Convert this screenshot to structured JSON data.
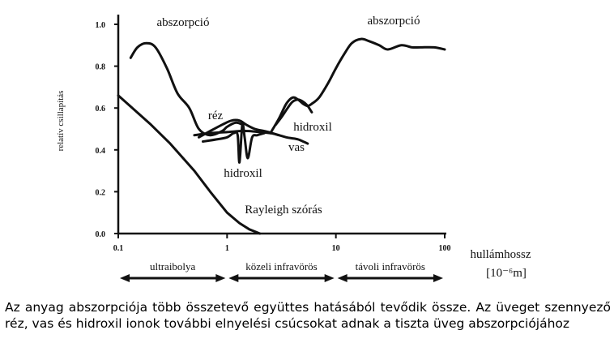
{
  "chart_data": {
    "type": "line",
    "ylabel": "relatív csillapítás",
    "xlabel": "hullámhossz",
    "xunit": "[10⁻⁶m]",
    "x_scale": "log",
    "xlim": [
      0.1,
      100
    ],
    "ylim": [
      0.0,
      1.0
    ],
    "x_ticks": [
      "0.1",
      "1",
      "10",
      "100"
    ],
    "y_ticks": [
      "0.0",
      "0.2",
      "0.4",
      "0.6",
      "0.8",
      "1.0"
    ],
    "series": [
      {
        "name": "abszorpció",
        "x": [
          0.13,
          0.15,
          0.18,
          0.22,
          0.28,
          0.35,
          0.45,
          0.55,
          0.7,
          0.9,
          1.0,
          1.2,
          1.4
        ],
        "y": [
          0.84,
          0.89,
          0.91,
          0.89,
          0.79,
          0.67,
          0.6,
          0.5,
          0.47,
          0.49,
          0.51,
          0.53,
          0.52
        ]
      },
      {
        "name": "abszorpció",
        "x": [
          2.5,
          3.0,
          3.5,
          4.0,
          4.5,
          5.0,
          5.5,
          6.0,
          7.0,
          8.5,
          10,
          12,
          14,
          17,
          20,
          25,
          30,
          40,
          50,
          60,
          80,
          100
        ],
        "y": [
          0.48,
          0.55,
          0.62,
          0.65,
          0.64,
          0.62,
          0.61,
          0.62,
          0.65,
          0.72,
          0.79,
          0.86,
          0.91,
          0.93,
          0.92,
          0.9,
          0.88,
          0.9,
          0.89,
          0.89,
          0.89,
          0.88
        ]
      },
      {
        "name": "réz",
        "x": [
          0.55,
          0.7,
          0.9,
          1.1,
          1.3,
          1.5,
          1.8,
          2.2,
          2.6,
          3.0
        ],
        "y": [
          0.46,
          0.49,
          0.52,
          0.54,
          0.54,
          0.52,
          0.5,
          0.49,
          0.48,
          0.47
        ]
      },
      {
        "name": "vas",
        "x": [
          0.5,
          0.7,
          1.0,
          1.3,
          1.6,
          2.0,
          2.5,
          3.0,
          3.5,
          4.0,
          4.5,
          5.0,
          5.5
        ],
        "y": [
          0.47,
          0.48,
          0.485,
          0.49,
          0.49,
          0.485,
          0.48,
          0.47,
          0.46,
          0.455,
          0.45,
          0.44,
          0.43
        ]
      },
      {
        "name": "hidroxil",
        "x": [
          0.6,
          0.8,
          1.0,
          1.15,
          1.25,
          1.3,
          1.38,
          1.45,
          1.55,
          1.7,
          1.9,
          2.2
        ],
        "y": [
          0.44,
          0.45,
          0.46,
          0.48,
          0.47,
          0.34,
          0.52,
          0.46,
          0.36,
          0.46,
          0.47,
          0.48
        ]
      },
      {
        "name": "hidroxil",
        "x": [
          2.8,
          3.2,
          3.6,
          4.0,
          4.5,
          5.0,
          5.5,
          6.0
        ],
        "y": [
          0.52,
          0.56,
          0.6,
          0.63,
          0.64,
          0.63,
          0.61,
          0.58
        ]
      },
      {
        "name": "Rayleigh szórás",
        "x": [
          0.1,
          0.2,
          0.3,
          0.5,
          0.7,
          1.0,
          1.3,
          1.6,
          2.0
        ],
        "y": [
          0.66,
          0.52,
          0.43,
          0.3,
          0.2,
          0.1,
          0.05,
          0.02,
          0.0
        ]
      }
    ],
    "curve_labels": [
      {
        "text": "abszorpció",
        "x": 0.24,
        "y": 0.97
      },
      {
        "text": "abszorpció",
        "x": 19,
        "y": 0.98
      },
      {
        "text": "réz",
        "x": 0.82,
        "y": 0.56
      },
      {
        "text": "hidroxil",
        "x": 0.0,
        "y": 0.0
      },
      {
        "text": "vas",
        "x": 0.0,
        "y": 0.0
      },
      {
        "text": "hidroxil",
        "x": 0.0,
        "y": 0.0
      },
      {
        "text": "Rayleigh szórás",
        "x": 0.0,
        "y": 0.0
      }
    ],
    "regions": [
      {
        "label": "ultraibolya",
        "from": 0.1,
        "to": 1
      },
      {
        "label": "közeli infravörös",
        "from": 1,
        "to": 10
      },
      {
        "label": "távoli infravörös",
        "from": 10,
        "to": 100
      }
    ]
  },
  "caption": "Az anyag abszorpciója több összetevő együttes hatásából tevődik össze. Az üveget szennyező réz, vas és hidroxil ionok további elnyelési csúcsokat adnak a tiszta üveg abszorpciójához",
  "colors": {
    "ink": "#111111",
    "background": "#ffffff"
  }
}
